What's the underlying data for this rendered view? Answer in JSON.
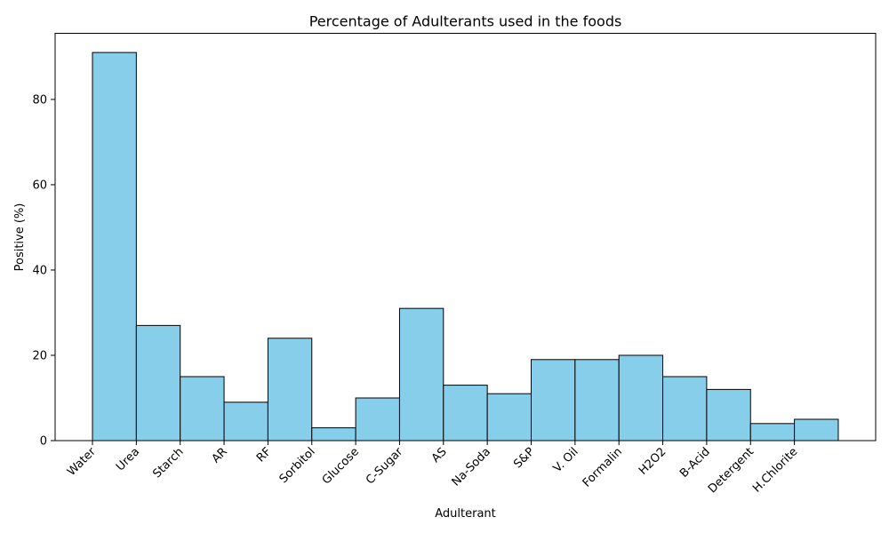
{
  "chart_data": {
    "type": "bar",
    "title": "Percentage of Adulterants used in the foods",
    "xlabel": "Adulterant",
    "ylabel": "Positive (%)",
    "categories": [
      "Water",
      "Urea",
      "Starch",
      "AR",
      "RF",
      "Sorbitol",
      "Glucose",
      "C-Sugar",
      "AS",
      "Na-Soda",
      "S&P",
      "V. Oil",
      "Formalin",
      "H2O2",
      "B-Acid",
      "Detergent",
      "H.Chlorite"
    ],
    "values": [
      91,
      27,
      15,
      9,
      24,
      3,
      10,
      31,
      13,
      11,
      19,
      19,
      20,
      15,
      12,
      4,
      5
    ],
    "ylim": [
      0,
      95.5
    ],
    "yticks": [
      0,
      20,
      40,
      60,
      80
    ],
    "bar_color": "#87ceeb",
    "edge_color": "#000000",
    "grid": false,
    "legend": false
  }
}
